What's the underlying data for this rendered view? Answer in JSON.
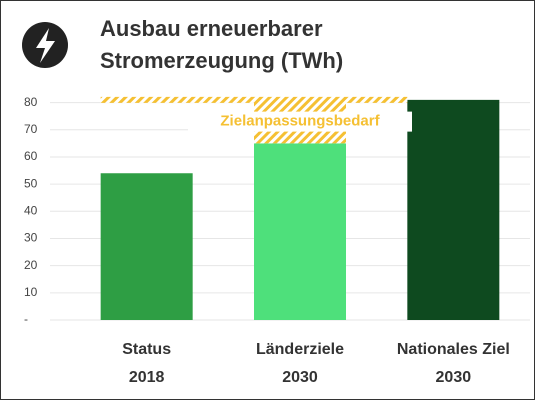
{
  "chart_data": {
    "type": "bar",
    "title": [
      "Ausbau erneuerbarer",
      "Stromerzeugung (TWh)"
    ],
    "categories": [
      [
        "Status",
        "2018"
      ],
      [
        "Länderziele",
        "2030"
      ],
      [
        "Nationales Ziel",
        "2030"
      ]
    ],
    "values": [
      54,
      65,
      81
    ],
    "colors": [
      "#2e9e44",
      "#4ee07b",
      "#0e4a1f"
    ],
    "annotation": "Zielanpassungsbedarf",
    "annotation_color": "#f5c033",
    "ylim": [
      0,
      85
    ],
    "yticks": [
      {
        "value": 0,
        "label": "-"
      },
      10,
      20,
      30,
      40,
      50,
      60,
      70,
      80
    ],
    "grid": true
  }
}
